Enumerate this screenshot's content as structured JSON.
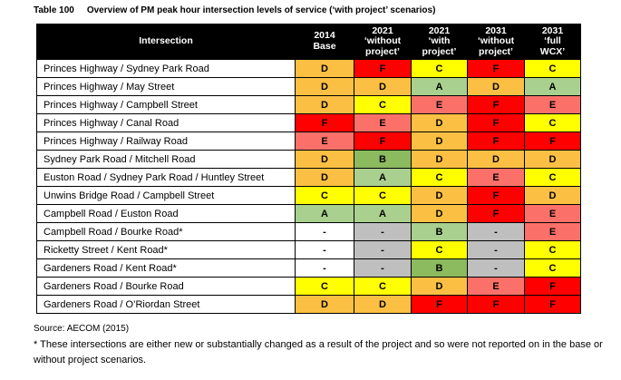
{
  "caption": {
    "label": "Table 100",
    "text": "Overview of PM peak hour intersection levels of service (‘with project’ scenarios)"
  },
  "colors": {
    "amber": "#FBC043",
    "yellow": "#FFFF00",
    "salmon": "#FB7169",
    "red": "#FF0000",
    "green_light": "#A9D08E",
    "green": "#8CBA5E",
    "gray": "#BFBFBF",
    "white": "#FFFFFF",
    "header_bg": "#000000",
    "header_text": "#FFFFFF"
  },
  "table": {
    "header": [
      "Intersection",
      "2014\nBase",
      "2021\n‘without\nproject’",
      "2021\n‘with\nproject’",
      "2031\n‘without\nproject’",
      "2031\n‘full\nWCX’"
    ],
    "rows": [
      {
        "intersection": "Princes Highway / Sydney Park Road",
        "grades": [
          {
            "value": "D",
            "color": "amber"
          },
          {
            "value": "F",
            "color": "red"
          },
          {
            "value": "C",
            "color": "yellow"
          },
          {
            "value": "F",
            "color": "red"
          },
          {
            "value": "C",
            "color": "yellow"
          }
        ]
      },
      {
        "intersection": "Princes Highway / May Street",
        "grades": [
          {
            "value": "D",
            "color": "amber"
          },
          {
            "value": "D",
            "color": "amber"
          },
          {
            "value": "A",
            "color": "green_light"
          },
          {
            "value": "D",
            "color": "amber"
          },
          {
            "value": "A",
            "color": "green_light"
          }
        ]
      },
      {
        "intersection": "Princes Highway / Campbell Street",
        "grades": [
          {
            "value": "D",
            "color": "amber"
          },
          {
            "value": "C",
            "color": "yellow"
          },
          {
            "value": "E",
            "color": "salmon"
          },
          {
            "value": "F",
            "color": "red"
          },
          {
            "value": "E",
            "color": "salmon"
          }
        ]
      },
      {
        "intersection": "Princes Highway / Canal Road",
        "grades": [
          {
            "value": "F",
            "color": "red"
          },
          {
            "value": "E",
            "color": "salmon"
          },
          {
            "value": "D",
            "color": "amber"
          },
          {
            "value": "F",
            "color": "red"
          },
          {
            "value": "C",
            "color": "yellow"
          }
        ]
      },
      {
        "intersection": "Princes Highway / Railway Road",
        "grades": [
          {
            "value": "E",
            "color": "salmon"
          },
          {
            "value": "F",
            "color": "red"
          },
          {
            "value": "D",
            "color": "amber"
          },
          {
            "value": "F",
            "color": "red"
          },
          {
            "value": "F",
            "color": "red"
          }
        ]
      },
      {
        "intersection": "Sydney Park Road / Mitchell Road",
        "grades": [
          {
            "value": "D",
            "color": "amber"
          },
          {
            "value": "B",
            "color": "green"
          },
          {
            "value": "D",
            "color": "amber"
          },
          {
            "value": "D",
            "color": "amber"
          },
          {
            "value": "D",
            "color": "amber"
          }
        ]
      },
      {
        "intersection": "Euston Road / Sydney Park Road / Huntley Street",
        "grades": [
          {
            "value": "D",
            "color": "amber"
          },
          {
            "value": "A",
            "color": "green_light"
          },
          {
            "value": "C",
            "color": "yellow"
          },
          {
            "value": "E",
            "color": "salmon"
          },
          {
            "value": "C",
            "color": "yellow"
          }
        ]
      },
      {
        "intersection": "Unwins Bridge Road / Campbell Street",
        "grades": [
          {
            "value": "C",
            "color": "yellow"
          },
          {
            "value": "C",
            "color": "yellow"
          },
          {
            "value": "D",
            "color": "amber"
          },
          {
            "value": "F",
            "color": "red"
          },
          {
            "value": "D",
            "color": "amber"
          }
        ]
      },
      {
        "intersection": "Campbell Road / Euston Road",
        "grades": [
          {
            "value": "A",
            "color": "green_light"
          },
          {
            "value": "A",
            "color": "green_light"
          },
          {
            "value": "D",
            "color": "amber"
          },
          {
            "value": "F",
            "color": "red"
          },
          {
            "value": "E",
            "color": "salmon"
          }
        ]
      },
      {
        "intersection": "Campbell Road / Bourke Road*",
        "grades": [
          {
            "value": "-",
            "color": "white"
          },
          {
            "value": "-",
            "color": "gray"
          },
          {
            "value": "B",
            "color": "green_light"
          },
          {
            "value": "-",
            "color": "gray"
          },
          {
            "value": "E",
            "color": "salmon"
          }
        ]
      },
      {
        "intersection": "Ricketty Street / Kent Road*",
        "grades": [
          {
            "value": "-",
            "color": "white"
          },
          {
            "value": "-",
            "color": "gray"
          },
          {
            "value": "C",
            "color": "yellow"
          },
          {
            "value": "-",
            "color": "gray"
          },
          {
            "value": "C",
            "color": "yellow"
          }
        ]
      },
      {
        "intersection": "Gardeners Road / Kent Road*",
        "grades": [
          {
            "value": "-",
            "color": "white"
          },
          {
            "value": "-",
            "color": "gray"
          },
          {
            "value": "B",
            "color": "green"
          },
          {
            "value": "-",
            "color": "gray"
          },
          {
            "value": "C",
            "color": "yellow"
          }
        ]
      },
      {
        "intersection": "Gardeners Road / Bourke Road",
        "grades": [
          {
            "value": "C",
            "color": "yellow"
          },
          {
            "value": "C",
            "color": "yellow"
          },
          {
            "value": "D",
            "color": "amber"
          },
          {
            "value": "E",
            "color": "salmon"
          },
          {
            "value": "F",
            "color": "red"
          }
        ]
      },
      {
        "intersection": "Gardeners Road / O’Riordan Street",
        "grades": [
          {
            "value": "D",
            "color": "amber"
          },
          {
            "value": "D",
            "color": "amber"
          },
          {
            "value": "F",
            "color": "red"
          },
          {
            "value": "F",
            "color": "red"
          },
          {
            "value": "F",
            "color": "red"
          }
        ]
      }
    ]
  },
  "source": "Source: AECOM (2015)",
  "footnote": "* These intersections are either new or substantially changed as a result of the project and so were not reported on in the base or without project scenarios."
}
